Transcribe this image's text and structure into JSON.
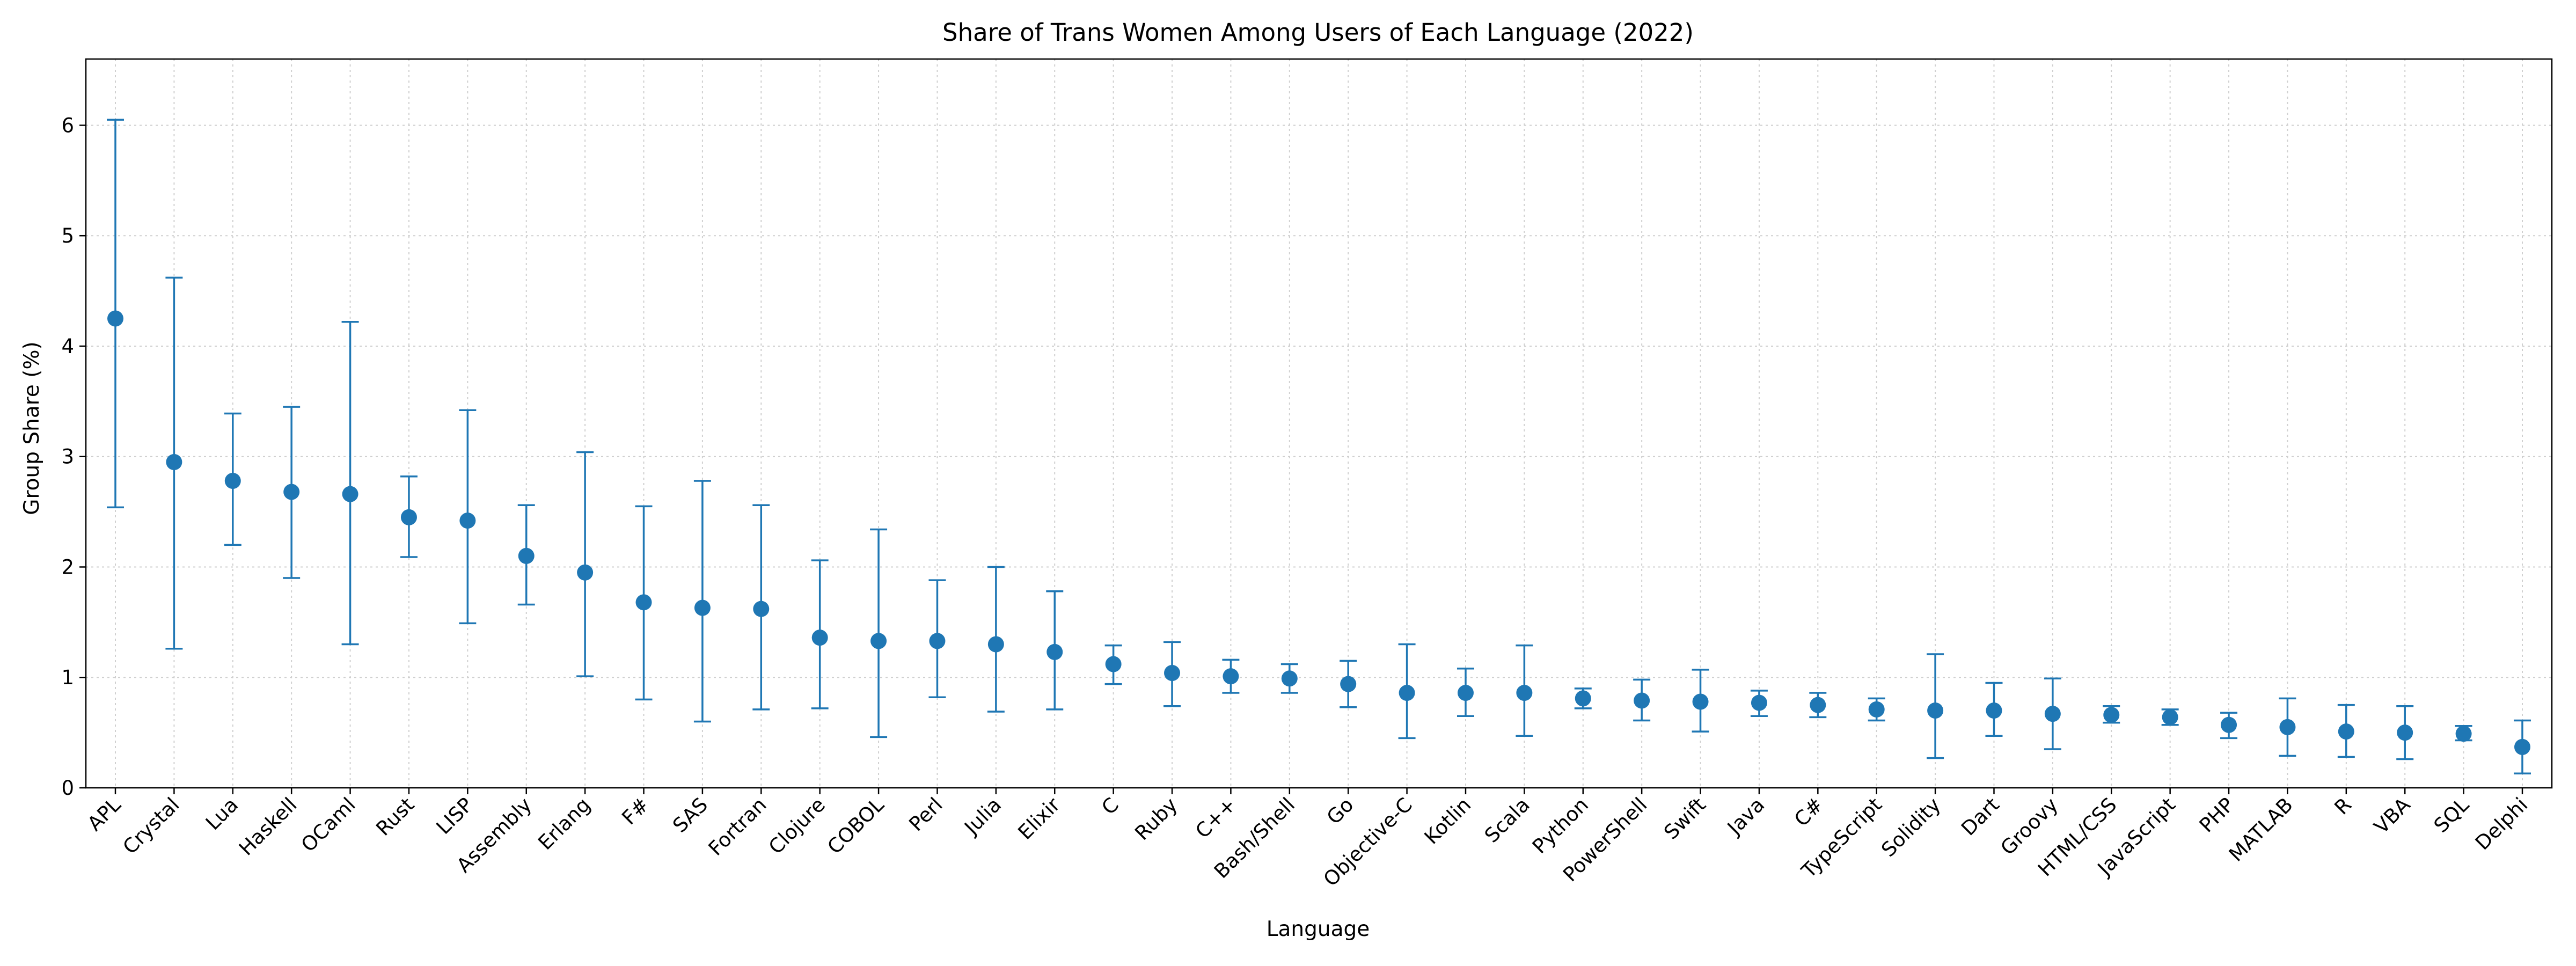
{
  "chart_data": {
    "type": "scatter",
    "title": "Share of Trans Women Among Users of Each Language (2022)",
    "xlabel": "Language",
    "ylabel": "Group Share (%)",
    "ylim": [
      0,
      6.6
    ],
    "yticks": [
      0,
      1,
      2,
      3,
      4,
      5,
      6
    ],
    "grid": true,
    "marker_color": "#1f77b4",
    "points": [
      {
        "label": "APL",
        "value": 4.25,
        "low": 2.54,
        "high": 6.05
      },
      {
        "label": "Crystal",
        "value": 2.95,
        "low": 1.26,
        "high": 4.62
      },
      {
        "label": "Lua",
        "value": 2.78,
        "low": 2.2,
        "high": 3.39
      },
      {
        "label": "Haskell",
        "value": 2.68,
        "low": 1.9,
        "high": 3.45
      },
      {
        "label": "OCaml",
        "value": 2.66,
        "low": 1.3,
        "high": 4.22
      },
      {
        "label": "Rust",
        "value": 2.45,
        "low": 2.09,
        "high": 2.82
      },
      {
        "label": "LISP",
        "value": 2.42,
        "low": 1.49,
        "high": 3.42
      },
      {
        "label": "Assembly",
        "value": 2.1,
        "low": 1.66,
        "high": 2.56
      },
      {
        "label": "Erlang",
        "value": 1.95,
        "low": 1.01,
        "high": 3.04
      },
      {
        "label": "F#",
        "value": 1.68,
        "low": 0.8,
        "high": 2.55
      },
      {
        "label": "SAS",
        "value": 1.63,
        "low": 0.6,
        "high": 2.78
      },
      {
        "label": "Fortran",
        "value": 1.62,
        "low": 0.71,
        "high": 2.56
      },
      {
        "label": "Clojure",
        "value": 1.36,
        "low": 0.72,
        "high": 2.06
      },
      {
        "label": "COBOL",
        "value": 1.33,
        "low": 0.46,
        "high": 2.34
      },
      {
        "label": "Perl",
        "value": 1.33,
        "low": 0.82,
        "high": 1.88
      },
      {
        "label": "Julia",
        "value": 1.3,
        "low": 0.69,
        "high": 2.0
      },
      {
        "label": "Elixir",
        "value": 1.23,
        "low": 0.71,
        "high": 1.78
      },
      {
        "label": "C",
        "value": 1.12,
        "low": 0.94,
        "high": 1.29
      },
      {
        "label": "Ruby",
        "value": 1.04,
        "low": 0.74,
        "high": 1.32
      },
      {
        "label": "C++",
        "value": 1.01,
        "low": 0.86,
        "high": 1.16
      },
      {
        "label": "Bash/Shell",
        "value": 0.99,
        "low": 0.86,
        "high": 1.12
      },
      {
        "label": "Go",
        "value": 0.94,
        "low": 0.73,
        "high": 1.15
      },
      {
        "label": "Objective-C",
        "value": 0.86,
        "low": 0.45,
        "high": 1.3
      },
      {
        "label": "Kotlin",
        "value": 0.86,
        "low": 0.65,
        "high": 1.08
      },
      {
        "label": "Scala",
        "value": 0.86,
        "low": 0.47,
        "high": 1.29
      },
      {
        "label": "Python",
        "value": 0.81,
        "low": 0.72,
        "high": 0.9
      },
      {
        "label": "PowerShell",
        "value": 0.79,
        "low": 0.61,
        "high": 0.98
      },
      {
        "label": "Swift",
        "value": 0.78,
        "low": 0.51,
        "high": 1.07
      },
      {
        "label": "Java",
        "value": 0.77,
        "low": 0.65,
        "high": 0.88
      },
      {
        "label": "C#",
        "value": 0.75,
        "low": 0.64,
        "high": 0.86
      },
      {
        "label": "TypeScript",
        "value": 0.71,
        "low": 0.61,
        "high": 0.81
      },
      {
        "label": "Solidity",
        "value": 0.7,
        "low": 0.27,
        "high": 1.21
      },
      {
        "label": "Dart",
        "value": 0.7,
        "low": 0.47,
        "high": 0.95
      },
      {
        "label": "Groovy",
        "value": 0.67,
        "low": 0.35,
        "high": 0.99
      },
      {
        "label": "HTML/CSS",
        "value": 0.66,
        "low": 0.59,
        "high": 0.74
      },
      {
        "label": "JavaScript",
        "value": 0.64,
        "low": 0.57,
        "high": 0.71
      },
      {
        "label": "PHP",
        "value": 0.57,
        "low": 0.45,
        "high": 0.68
      },
      {
        "label": "MATLAB",
        "value": 0.55,
        "low": 0.29,
        "high": 0.81
      },
      {
        "label": "R",
        "value": 0.51,
        "low": 0.28,
        "high": 0.75
      },
      {
        "label": "VBA",
        "value": 0.5,
        "low": 0.26,
        "high": 0.74
      },
      {
        "label": "SQL",
        "value": 0.49,
        "low": 0.43,
        "high": 0.56
      },
      {
        "label": "Delphi",
        "value": 0.37,
        "low": 0.13,
        "high": 0.61
      }
    ]
  }
}
